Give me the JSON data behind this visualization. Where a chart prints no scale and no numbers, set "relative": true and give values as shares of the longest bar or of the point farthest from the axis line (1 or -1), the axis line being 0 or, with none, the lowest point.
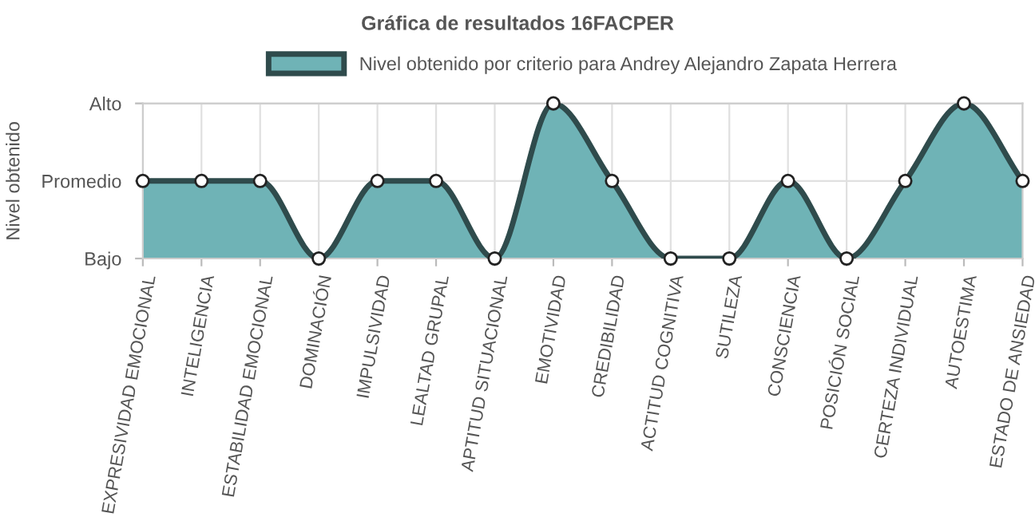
{
  "chart_data": {
    "type": "area",
    "title": "Gráfica de resultados 16FACPER",
    "ylabel": "Nivel obtenido",
    "categories": [
      "EXPRESIVIDAD EMOCIONAL",
      "INTELIGENCIA",
      "ESTABILIDAD EMOCIONAL",
      "DOMINACIÓN",
      "IMPULSIVIDAD",
      "LEALTAD GRUPAL",
      "APTITUD SITUACIONAL",
      "EMOTIVIDAD",
      "CREDIBILIDAD",
      "ACTITUD COGNITIVA",
      "SUTILEZA",
      "CONSCIENCIA",
      "POSICIÓN SOCIAL",
      "CERTEZA INDIVIDUAL",
      "AUTOESTIMA",
      "ESTADO DE ANSIEDAD"
    ],
    "series": [
      {
        "name": "Nivel obtenido por criterio para Andrey Alejandro Zapata Herrera",
        "color": "#6fb3b6",
        "values": [
          0.5,
          0.5,
          0.5,
          0,
          0.5,
          0.5,
          0,
          1,
          0.5,
          0,
          0,
          0.5,
          0,
          0.5,
          1,
          0.5
        ]
      }
    ],
    "relative": true,
    "y_categories": [
      "Alto",
      "Promedio",
      "Bajo"
    ],
    "grid": true,
    "legend": "top",
    "marker": "circle",
    "line_style": "solid"
  }
}
